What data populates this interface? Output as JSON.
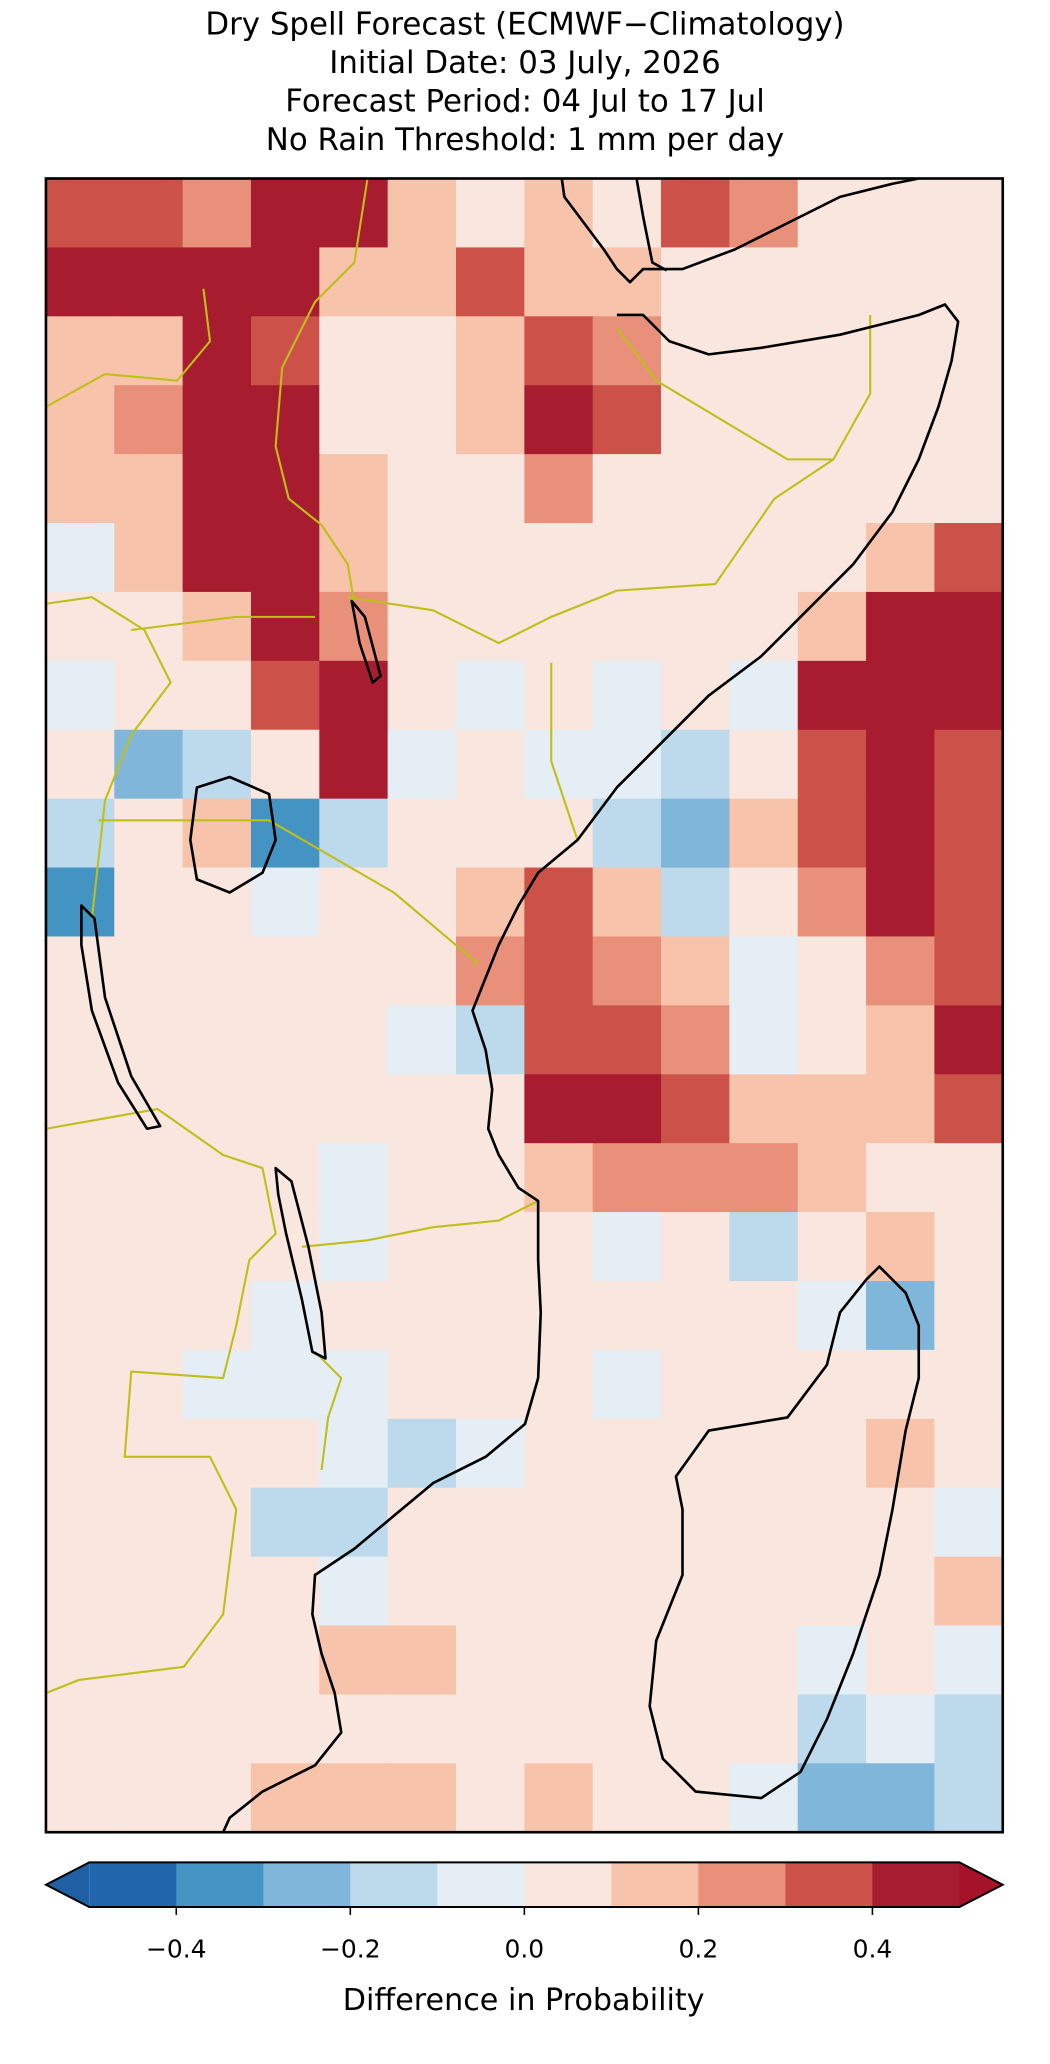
{
  "chart_data": {
    "type": "heatmap",
    "title": [
      "Dry Spell Forecast (ECMWF−Climatology)",
      "Initial Date: 03 July, 2026",
      "Forecast Period: 04 Jul to 17 Jul",
      "No Rain Threshold: 1 mm per day"
    ],
    "values": [
      [
        0.35,
        0.35,
        0.25,
        0.45,
        0.45,
        0.15,
        0.05,
        0.15,
        0.05,
        0.35,
        0.25,
        0.05,
        0.05,
        0.05
      ],
      [
        0.45,
        0.45,
        0.45,
        0.45,
        0.15,
        0.15,
        0.35,
        0.15,
        0.15,
        0.05,
        0.05,
        0.05,
        0.05,
        0.05
      ],
      [
        0.15,
        0.15,
        0.4,
        0.35,
        0.05,
        0.05,
        0.15,
        0.35,
        0.25,
        0.05,
        0.05,
        0.05,
        0.05,
        0.05
      ],
      [
        0.15,
        0.25,
        0.45,
        0.45,
        0.05,
        0.05,
        0.15,
        0.45,
        0.35,
        0.05,
        0.05,
        0.05,
        0.05,
        0.05
      ],
      [
        0.15,
        0.15,
        0.45,
        0.45,
        0.15,
        0.05,
        0.05,
        0.25,
        0.05,
        0.05,
        0.05,
        0.05,
        0.05,
        0.05
      ],
      [
        -0.05,
        0.15,
        0.45,
        0.45,
        0.15,
        0.05,
        0.05,
        0.05,
        0.05,
        0.05,
        0.05,
        0.05,
        0.15,
        0.35
      ],
      [
        0.05,
        0.05,
        0.15,
        0.45,
        0.25,
        0.05,
        0.05,
        0.05,
        0.05,
        0.05,
        0.05,
        0.15,
        0.45,
        0.45
      ],
      [
        -0.05,
        0.05,
        0.05,
        0.35,
        0.4,
        0.05,
        -0.05,
        0.05,
        -0.05,
        0.05,
        -0.05,
        0.45,
        0.45,
        0.45
      ],
      [
        0.05,
        -0.25,
        -0.15,
        0.05,
        0.45,
        -0.05,
        0.05,
        -0.05,
        -0.05,
        -0.15,
        0.05,
        0.35,
        0.4,
        0.35
      ],
      [
        -0.15,
        0.05,
        0.15,
        -0.35,
        -0.15,
        0.05,
        0.05,
        0.05,
        -0.15,
        -0.25,
        0.15,
        0.35,
        0.45,
        0.35
      ],
      [
        -0.35,
        0.05,
        0.05,
        -0.05,
        0.05,
        0.05,
        0.15,
        0.3,
        0.15,
        -0.15,
        0.05,
        0.25,
        0.4,
        0.3
      ],
      [
        0.05,
        0.05,
        0.05,
        0.05,
        0.05,
        0.05,
        0.25,
        0.35,
        0.25,
        0.15,
        -0.05,
        0.05,
        0.25,
        0.35
      ],
      [
        0.05,
        0.05,
        0.05,
        0.05,
        0.05,
        -0.05,
        -0.15,
        0.35,
        0.35,
        0.25,
        -0.05,
        0.05,
        0.15,
        0.4
      ],
      [
        0.05,
        0.05,
        0.05,
        0.05,
        0.05,
        0.05,
        0.05,
        0.4,
        0.4,
        0.35,
        0.15,
        0.15,
        0.15,
        0.3
      ],
      [
        0.05,
        0.05,
        0.05,
        0.05,
        -0.05,
        0.05,
        0.05,
        0.15,
        0.25,
        0.25,
        0.25,
        0.15,
        0.05,
        0.05
      ],
      [
        0.05,
        0.05,
        0.05,
        0.05,
        -0.05,
        0.05,
        0.05,
        0.05,
        -0.05,
        0.05,
        -0.15,
        0.05,
        0.15,
        0.05
      ],
      [
        0.05,
        0.05,
        0.05,
        -0.05,
        0.05,
        0.05,
        0.05,
        0.05,
        0.05,
        0.05,
        0.05,
        -0.05,
        -0.25,
        0.05
      ],
      [
        0.05,
        0.05,
        -0.05,
        -0.05,
        -0.05,
        0.05,
        0.05,
        0.05,
        -0.05,
        0.05,
        0.05,
        0.05,
        0.05,
        0.05
      ],
      [
        0.05,
        0.05,
        0.05,
        0.05,
        -0.05,
        -0.15,
        -0.05,
        0.05,
        0.05,
        0.05,
        0.05,
        0.05,
        0.15,
        0.05
      ],
      [
        0.05,
        0.05,
        0.05,
        -0.15,
        -0.15,
        0.05,
        0.05,
        0.05,
        0.05,
        0.05,
        0.05,
        0.05,
        0.05,
        -0.05
      ],
      [
        0.05,
        0.05,
        0.05,
        0.05,
        -0.05,
        0.05,
        0.05,
        0.05,
        0.05,
        0.05,
        0.05,
        0.05,
        0.05,
        0.15
      ],
      [
        0.05,
        0.05,
        0.05,
        0.05,
        0.15,
        0.15,
        0.05,
        0.05,
        0.05,
        0.05,
        0.05,
        -0.05,
        0.05,
        -0.05
      ],
      [
        0.05,
        0.05,
        0.05,
        0.05,
        0.05,
        0.05,
        0.05,
        0.05,
        0.05,
        0.05,
        0.05,
        -0.15,
        -0.05,
        -0.15
      ],
      [
        0.05,
        0.05,
        0.05,
        0.15,
        0.15,
        0.15,
        0.05,
        0.15,
        0.05,
        0.05,
        -0.05,
        -0.25,
        -0.25,
        -0.15
      ]
    ],
    "colorbar": {
      "label": "Difference in Probability",
      "vlim": [
        -0.5,
        0.5
      ],
      "ticks": [
        {
          "value": -0.4,
          "label": "−0.4"
        },
        {
          "value": -0.2,
          "label": "−0.2"
        },
        {
          "value": 0,
          "label": "0.0"
        },
        0.2,
        0.4
      ],
      "colors": [
        "#2166ac",
        "#4393c3",
        "#7fb6d9",
        "#bcdaeb",
        "#e5eef4",
        "#f9e6de",
        "#f7c4ab",
        "#e8907a",
        "#cc5249",
        "#a81c2f"
      ],
      "extend": "both",
      "under_color": "#1f5fa3",
      "over_color": "#a51229"
    }
  }
}
